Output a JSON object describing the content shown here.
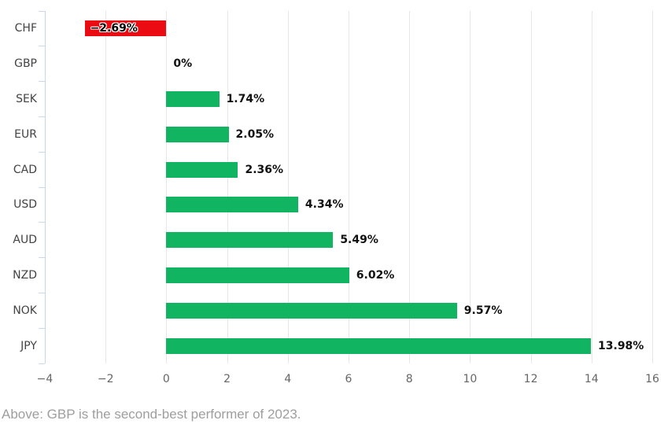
{
  "chart_data": {
    "type": "bar",
    "orientation": "horizontal",
    "title": "",
    "xlabel": "",
    "ylabel": "",
    "categories": [
      "CHF",
      "GBP",
      "SEK",
      "EUR",
      "CAD",
      "USD",
      "AUD",
      "NZD",
      "NOK",
      "JPY"
    ],
    "values": [
      -2.69,
      0,
      1.74,
      2.05,
      2.36,
      4.34,
      5.49,
      6.02,
      9.57,
      13.98
    ],
    "value_labels": [
      "−2.69%",
      "0%",
      "1.74%",
      "2.05%",
      "2.36%",
      "4.34%",
      "5.49%",
      "6.02%",
      "9.57%",
      "13.98%"
    ],
    "xlim": [
      -4,
      16
    ],
    "xticks": [
      -4,
      -2,
      0,
      2,
      4,
      6,
      8,
      10,
      12,
      14,
      16
    ],
    "xtick_labels": [
      "−4",
      "−2",
      "0",
      "2",
      "4",
      "6",
      "8",
      "10",
      "12",
      "14",
      "16"
    ],
    "grid": true,
    "legend": false,
    "colors": {
      "positive_bar": "#10b461",
      "negative_bar": "#ea0c12",
      "gridline": "#e7e7e7",
      "axis_line": "#ccd6eb"
    }
  },
  "caption": {
    "text": "Above: GBP is the second-best performer of 2023."
  }
}
